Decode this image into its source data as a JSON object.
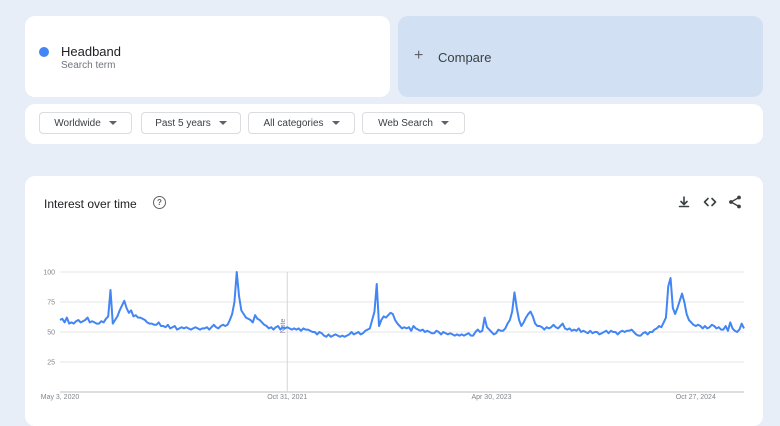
{
  "search_term": {
    "name": "Headband",
    "subtitle": "Search term",
    "color": "#4285f4"
  },
  "compare": {
    "plus": "+",
    "label": "Compare"
  },
  "filters": {
    "region": "Worldwide",
    "time": "Past 5 years",
    "category": "All categories",
    "property": "Web Search"
  },
  "chart": {
    "title": "Interest over time",
    "help_glyph": "?",
    "marker_label": "Note",
    "icons": [
      "download-icon",
      "embed-code-icon",
      "share-icon"
    ]
  },
  "chart_data": {
    "type": "line",
    "x_tick_labels": [
      "May 3, 2020",
      "Oct 31, 2021",
      "Apr 30, 2023",
      "Oct 27, 2024"
    ],
    "y_ticks": [
      25,
      50,
      75,
      100
    ],
    "ylim": [
      0,
      100
    ],
    "series": [
      {
        "color": "#4285f4",
        "values": [
          60,
          61,
          58,
          62,
          57,
          58,
          57,
          59,
          60,
          58,
          59,
          60,
          62,
          58,
          59,
          58,
          57,
          57,
          59,
          58,
          61,
          63,
          85,
          57,
          60,
          63,
          68,
          72,
          76,
          70,
          66,
          68,
          63,
          64,
          62,
          62,
          61,
          60,
          58,
          57,
          57,
          56,
          56,
          58,
          55,
          55,
          54,
          56,
          53,
          54,
          55,
          52,
          53,
          54,
          53,
          54,
          53,
          52,
          53,
          54,
          53,
          52,
          53,
          53,
          54,
          52,
          54,
          56,
          54,
          53,
          55,
          56,
          55,
          56,
          60,
          65,
          75,
          100,
          80,
          68,
          65,
          62,
          61,
          60,
          58,
          64,
          61,
          60,
          58,
          56,
          55,
          53,
          54,
          52,
          54,
          55,
          52,
          54,
          53,
          54,
          53,
          52,
          53,
          52,
          53,
          51,
          53,
          52,
          52,
          51,
          50,
          50,
          48,
          50,
          49,
          47,
          46,
          48,
          46,
          47,
          48,
          47,
          46,
          47,
          46,
          47,
          48,
          50,
          48,
          49,
          50,
          48,
          49,
          51,
          52,
          53,
          60,
          67,
          90,
          55,
          60,
          63,
          62,
          64,
          66,
          65,
          60,
          57,
          55,
          53,
          54,
          53,
          54,
          51,
          55,
          53,
          52,
          51,
          52,
          50,
          51,
          50,
          49,
          49,
          51,
          50,
          48,
          50,
          49,
          48,
          49,
          48,
          47,
          48,
          47,
          48,
          47,
          48,
          49,
          47,
          47,
          50,
          52,
          50,
          51,
          62,
          54,
          52,
          50,
          48,
          49,
          52,
          51,
          51,
          53,
          57,
          60,
          67,
          83,
          70,
          60,
          55,
          58,
          62,
          65,
          67,
          63,
          57,
          55,
          55,
          54,
          52,
          54,
          53,
          54,
          56,
          54,
          53,
          55,
          57,
          53,
          52,
          53,
          51,
          52,
          51,
          53,
          50,
          51,
          50,
          49,
          51,
          49,
          50,
          50,
          48,
          49,
          50,
          51,
          49,
          51,
          50,
          50,
          48,
          50,
          51,
          50,
          51,
          51,
          52,
          50,
          48,
          47,
          47,
          49,
          50,
          48,
          50,
          50,
          52,
          53,
          55,
          54,
          58,
          62,
          88,
          95,
          70,
          65,
          70,
          76,
          82,
          75,
          65,
          60,
          58,
          56,
          55,
          56,
          55,
          53,
          55,
          53,
          54,
          56,
          55,
          53,
          54,
          52,
          52,
          55,
          51,
          58,
          53,
          51,
          50,
          52,
          57,
          53
        ]
      }
    ]
  }
}
